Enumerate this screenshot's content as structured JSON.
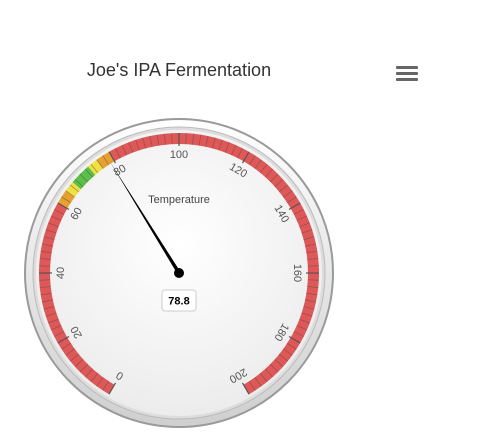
{
  "chart": {
    "title": "Joe's IPA Fermentation",
    "menu_icon": "hamburger-menu-icon"
  },
  "chart_data": {
    "type": "gauge",
    "title": "Joe's IPA Fermentation",
    "pane_title": "Temperature",
    "min": 0,
    "max": 200,
    "value": 78.8,
    "value_label": "78.8",
    "tick_labels": [
      "0",
      "20",
      "40",
      "60",
      "80",
      "100",
      "120",
      "140",
      "160",
      "180",
      "200"
    ],
    "bands": [
      {
        "from": 0,
        "to": 60,
        "color": "#e05757"
      },
      {
        "from": 60,
        "to": 64,
        "color": "#e8a030"
      },
      {
        "from": 64,
        "to": 67,
        "color": "#f0e040"
      },
      {
        "from": 67,
        "to": 73,
        "color": "#5cbf4a"
      },
      {
        "from": 73,
        "to": 76,
        "color": "#f0e040"
      },
      {
        "from": 76,
        "to": 80,
        "color": "#e8a030"
      },
      {
        "from": 80,
        "to": 200,
        "color": "#e05757"
      }
    ]
  }
}
